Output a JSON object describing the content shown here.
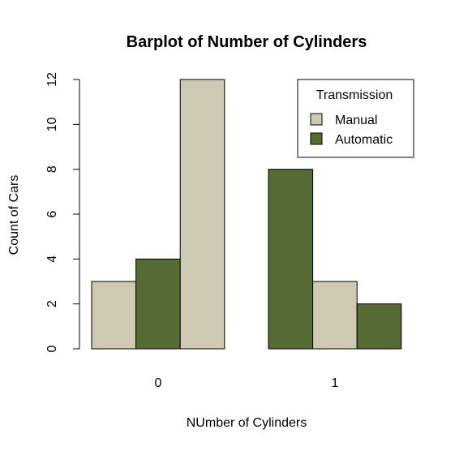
{
  "chart_data": {
    "type": "bar",
    "title": "Barplot of Number of Cylinders",
    "xlabel": "NUmber of Cylinders",
    "ylabel": "Count of Cars",
    "ylim": [
      0,
      12
    ],
    "y_ticks": [
      "0",
      "2",
      "4",
      "6",
      "8",
      "10",
      "12"
    ],
    "grid": false,
    "legend_position": "top-right",
    "groups": [
      {
        "label": "0",
        "bars": [
          {
            "fill": "#cdc9b2",
            "value": 3
          },
          {
            "fill": "#566b33",
            "value": 4
          },
          {
            "fill": "#cdc9b2",
            "value": 12
          }
        ]
      },
      {
        "label": "1",
        "bars": [
          {
            "fill": "#566b33",
            "value": 8
          },
          {
            "fill": "#cdc9b2",
            "value": 3
          },
          {
            "fill": "#566b33",
            "value": 2
          }
        ]
      }
    ],
    "legend": {
      "title": "Transmission",
      "entries": [
        {
          "label": "Manual",
          "color": "#cdc9b2"
        },
        {
          "label": "Automatic",
          "color": "#566b33"
        }
      ]
    }
  }
}
